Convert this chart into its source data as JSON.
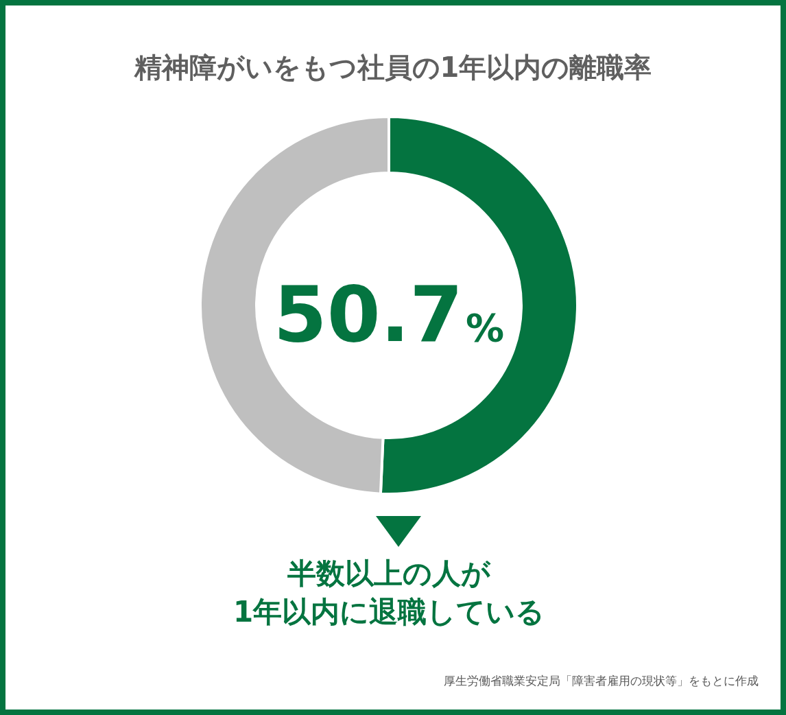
{
  "chart_data": {
    "type": "donut",
    "title": "精神障がいをもつ社員の1年以内の離職率",
    "categories": [
      null,
      null
    ],
    "values": [
      50.7,
      49.3
    ],
    "colors": [
      "#047440",
      "#bfbfbf"
    ],
    "value_labels": [
      "50.7%",
      null
    ],
    "annotations": [
      "半数以上の人が\n1年以内に退職している",
      "厚生労働省職業安定局「障害者雇用の現状等」をもとに作成"
    ]
  }
}
